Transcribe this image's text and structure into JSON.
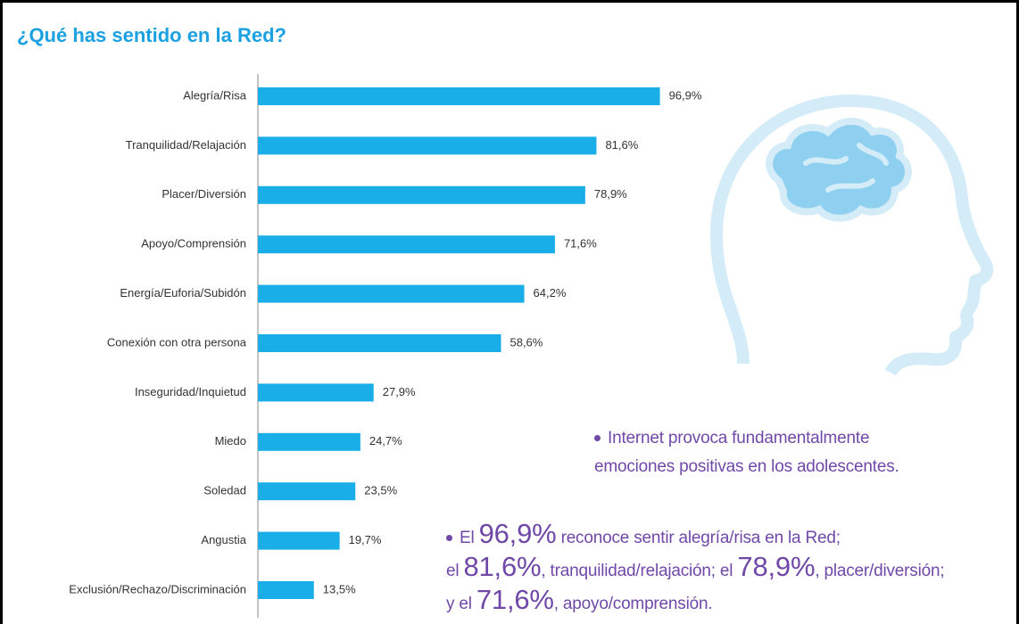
{
  "chart_data": {
    "type": "bar",
    "orientation": "horizontal",
    "title": "¿Qué has sentido en la Red?",
    "categories": [
      "Alegría/Risa",
      "Tranquilidad/Relajación",
      "Placer/Diversión",
      "Apoyo/Comprensión",
      "Energía/Euforia/Subidón",
      "Conexión con otra persona",
      "Inseguridad/Inquietud",
      "Miedo",
      "Soledad",
      "Angustia",
      "Exclusión/Rechazo/Discriminación"
    ],
    "values": [
      96.9,
      81.6,
      78.9,
      71.6,
      64.2,
      58.6,
      27.9,
      24.7,
      23.5,
      19.7,
      13.5
    ],
    "value_labels": [
      "96,9%",
      "81,6%",
      "78,9%",
      "71,6%",
      "64,2%",
      "58,6%",
      "27,9%",
      "24,7%",
      "23,5%",
      "19,7%",
      "13,5%"
    ],
    "color": "#1aaee8",
    "annotations": [
      {
        "lines": [
          [
            "Internet provoca fundamentalmente"
          ],
          [
            "emociones positivas en los adolescentes."
          ]
        ]
      },
      {
        "lines": [
          [
            "El ",
            "96,9%",
            " reconoce sentir alegría/risa en la Red;"
          ],
          [
            "el ",
            "81,6%",
            ", tranquilidad/relajación; el ",
            "78,9%",
            ", placer/diversión;"
          ],
          [
            "y el ",
            "71,6%",
            ", apoyo/comprensión."
          ]
        ]
      }
    ]
  }
}
